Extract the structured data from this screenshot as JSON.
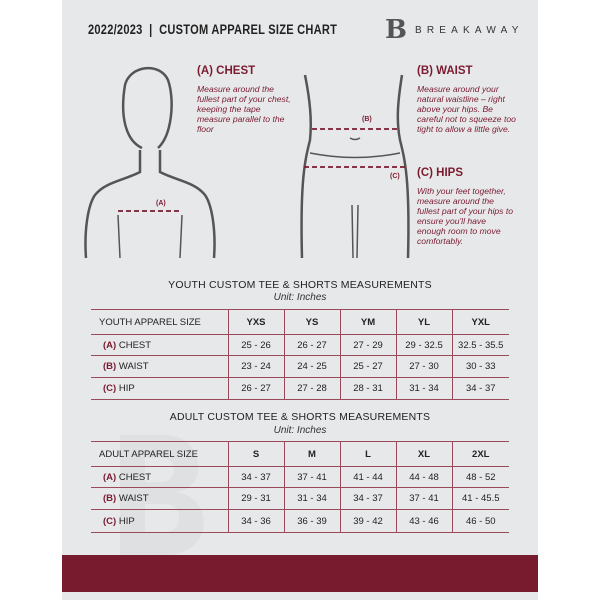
{
  "header": {
    "title": "2022/2023  |  CUSTOM APPAREL SIZE CHART",
    "logo_text": "BREAKAWAY",
    "logo_mark": "B"
  },
  "guide": {
    "chest": {
      "title": "(A) CHEST",
      "text": "Measure around the fullest part of your chest, keeping the tape measure parallel to the floor",
      "marker": "(A)"
    },
    "waist": {
      "title": "(B) WAIST",
      "text": "Measure around your natural waistline – right above your hips. Be careful not to squeeze too tight to allow a little give.",
      "marker": "(B)"
    },
    "hips": {
      "title": "(C) HIPS",
      "text": "With your feet together, measure around the fullest part of your hips to ensure you'll have enough room to move comfortably.",
      "marker": "(C)"
    }
  },
  "youth": {
    "heading": "YOUTH CUSTOM TEE & SHORTS MEASUREMENTS",
    "unit": "Unit: Inches",
    "label": "YOUTH APPAREL SIZE",
    "sizes": [
      "YXS",
      "YS",
      "YM",
      "YL",
      "YXL"
    ],
    "rows": [
      {
        "code": "(A)",
        "name": "CHEST",
        "values": [
          "25 - 26",
          "26 - 27",
          "27 - 29",
          "29 - 32.5",
          "32.5 - 35.5"
        ]
      },
      {
        "code": "(B)",
        "name": "WAIST",
        "values": [
          "23 - 24",
          "24 - 25",
          "25 - 27",
          "27 - 30",
          "30 - 33"
        ]
      },
      {
        "code": "(C)",
        "name": "HIP",
        "values": [
          "26 - 27",
          "27 - 28",
          "28 - 31",
          "31 - 34",
          "34 - 37"
        ]
      }
    ]
  },
  "adult": {
    "heading": "ADULT CUSTOM TEE & SHORTS MEASUREMENTS",
    "unit": "Unit: Inches",
    "label": "ADULT APPAREL SIZE",
    "sizes": [
      "S",
      "M",
      "L",
      "XL",
      "2XL"
    ],
    "rows": [
      {
        "code": "(A)",
        "name": "CHEST",
        "values": [
          "34 - 37",
          "37 - 41",
          "41 - 44",
          "44 - 48",
          "48 - 52"
        ]
      },
      {
        "code": "(B)",
        "name": "WAIST",
        "values": [
          "29 - 31",
          "31 - 34",
          "34 - 37",
          "37 - 41",
          "41 - 45.5"
        ]
      },
      {
        "code": "(C)",
        "name": "HIP",
        "values": [
          "34 - 36",
          "36 - 39",
          "39 - 42",
          "43 - 46",
          "46 - 50"
        ]
      }
    ]
  },
  "colors": {
    "accent": "#781b2f",
    "paper": "#e7e8ea"
  }
}
